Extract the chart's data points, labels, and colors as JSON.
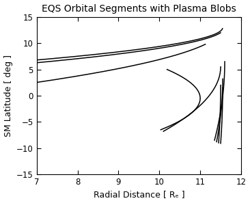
{
  "title": "EQS Orbital Segments with Plasma Blobs",
  "xlabel": "Radial Distance [ Rₑ ]",
  "ylabel": "SM Latitude [ deg ]",
  "xlim": [
    7,
    12
  ],
  "ylim": [
    -15,
    15
  ],
  "xticks": [
    7,
    8,
    9,
    10,
    11,
    12
  ],
  "yticks": [
    -15,
    -10,
    -5,
    0,
    5,
    10,
    15
  ],
  "background": "#ffffff",
  "line_color": "#000000",
  "line_width": 1.1,
  "segments": [
    {
      "lat1": 9.8,
      "r1": 8.3,
      "lat2": -8.5,
      "r2": 11.35,
      "r_apex": 11.55,
      "lat_apex": 13.0
    },
    {
      "lat1": 12.0,
      "r1": 9.35,
      "lat2": -8.2,
      "r2": 11.35,
      "r_apex": 11.6,
      "lat_apex": 13.0
    },
    {
      "lat1": 5.0,
      "r1": 9.35,
      "lat2": -6.5,
      "r2": 10.95,
      "r_apex": 11.0,
      "lat_apex": -0.5
    },
    {
      "lat1": -6.5,
      "r1": 9.95,
      "lat2": 12.8,
      "r2": 11.1,
      "r_apex": 11.55,
      "lat_apex": 13.0
    },
    {
      "lat1": -6.8,
      "r1": 10.1,
      "lat2": 5.5,
      "r2": 11.45,
      "r_apex": 11.5,
      "lat_apex": 5.5
    },
    {
      "lat1": 6.5,
      "r1": 10.55,
      "lat2": -8.5,
      "r2": 11.35,
      "r_apex": 11.6,
      "lat_apex": 6.5
    },
    {
      "lat1": 3.2,
      "r1": 10.65,
      "lat2": -8.8,
      "r2": 11.4,
      "r_apex": 11.55,
      "lat_apex": 3.2
    },
    {
      "lat1": 2.0,
      "r1": 11.05,
      "lat2": -9.0,
      "r2": 11.45,
      "r_apex": 11.5,
      "lat_apex": 2.0
    },
    {
      "lat1": 1.5,
      "r1": 11.1,
      "lat2": -9.1,
      "r2": 11.5,
      "r_apex": 11.55,
      "lat_apex": 1.5
    }
  ]
}
